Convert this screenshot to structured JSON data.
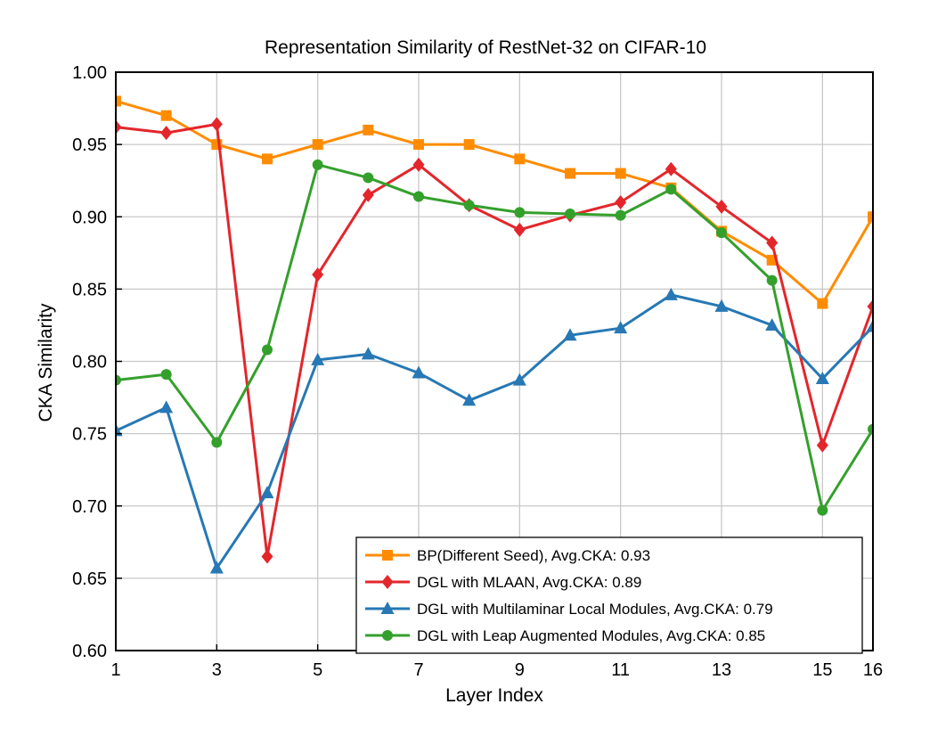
{
  "chart_data": {
    "type": "line",
    "title": "Representation Similarity of RestNet-32 on CIFAR-10",
    "xlabel": "Layer Index",
    "ylabel": "CKA Similarity",
    "xlim": [
      1,
      16
    ],
    "ylim": [
      0.6,
      1.0
    ],
    "xticks": [
      1,
      3,
      5,
      7,
      9,
      11,
      13,
      15,
      16
    ],
    "xtick_labels": [
      "1",
      "3",
      "5",
      "7",
      "9",
      "11",
      "13",
      "15",
      "16"
    ],
    "yticks": [
      0.6,
      0.65,
      0.7,
      0.75,
      0.8,
      0.85,
      0.9,
      0.95,
      1.0
    ],
    "ytick_labels": [
      "0.60",
      "0.65",
      "0.70",
      "0.75",
      "0.80",
      "0.85",
      "0.90",
      "0.95",
      "1.00"
    ],
    "grid": true,
    "legend_position": "bottom-right",
    "x": [
      1,
      2,
      3,
      4,
      5,
      6,
      7,
      8,
      9,
      10,
      11,
      12,
      13,
      14,
      15,
      16
    ],
    "series": [
      {
        "name": "BP(Different Seed), Avg.CKA: 0.93",
        "color": "#ff8c00",
        "marker": "square",
        "values": [
          0.98,
          0.97,
          0.95,
          0.94,
          0.95,
          0.96,
          0.95,
          0.95,
          0.94,
          0.93,
          0.93,
          0.92,
          0.89,
          0.87,
          0.84,
          0.9
        ]
      },
      {
        "name": "DGL with MLAAN, Avg.CKA: 0.89",
        "color": "#e3262b",
        "marker": "diamond",
        "values": [
          0.962,
          0.958,
          0.964,
          0.665,
          0.86,
          0.915,
          0.936,
          0.908,
          0.891,
          0.901,
          0.91,
          0.933,
          0.907,
          0.882,
          0.742,
          0.838
        ]
      },
      {
        "name": "DGL with Multilaminar Local Modules, Avg.CKA: 0.79",
        "color": "#2778b4",
        "marker": "triangle",
        "values": [
          0.752,
          0.768,
          0.657,
          0.709,
          0.801,
          0.805,
          0.792,
          0.773,
          0.787,
          0.818,
          0.823,
          0.846,
          0.838,
          0.825,
          0.788,
          0.824
        ]
      },
      {
        "name": "DGL with Leap Augmented Modules, Avg.CKA: 0.85",
        "color": "#34a02c",
        "marker": "circle",
        "values": [
          0.787,
          0.791,
          0.744,
          0.808,
          0.936,
          0.927,
          0.914,
          0.908,
          0.903,
          0.902,
          0.901,
          0.919,
          0.889,
          0.856,
          0.697,
          0.753
        ]
      }
    ]
  }
}
